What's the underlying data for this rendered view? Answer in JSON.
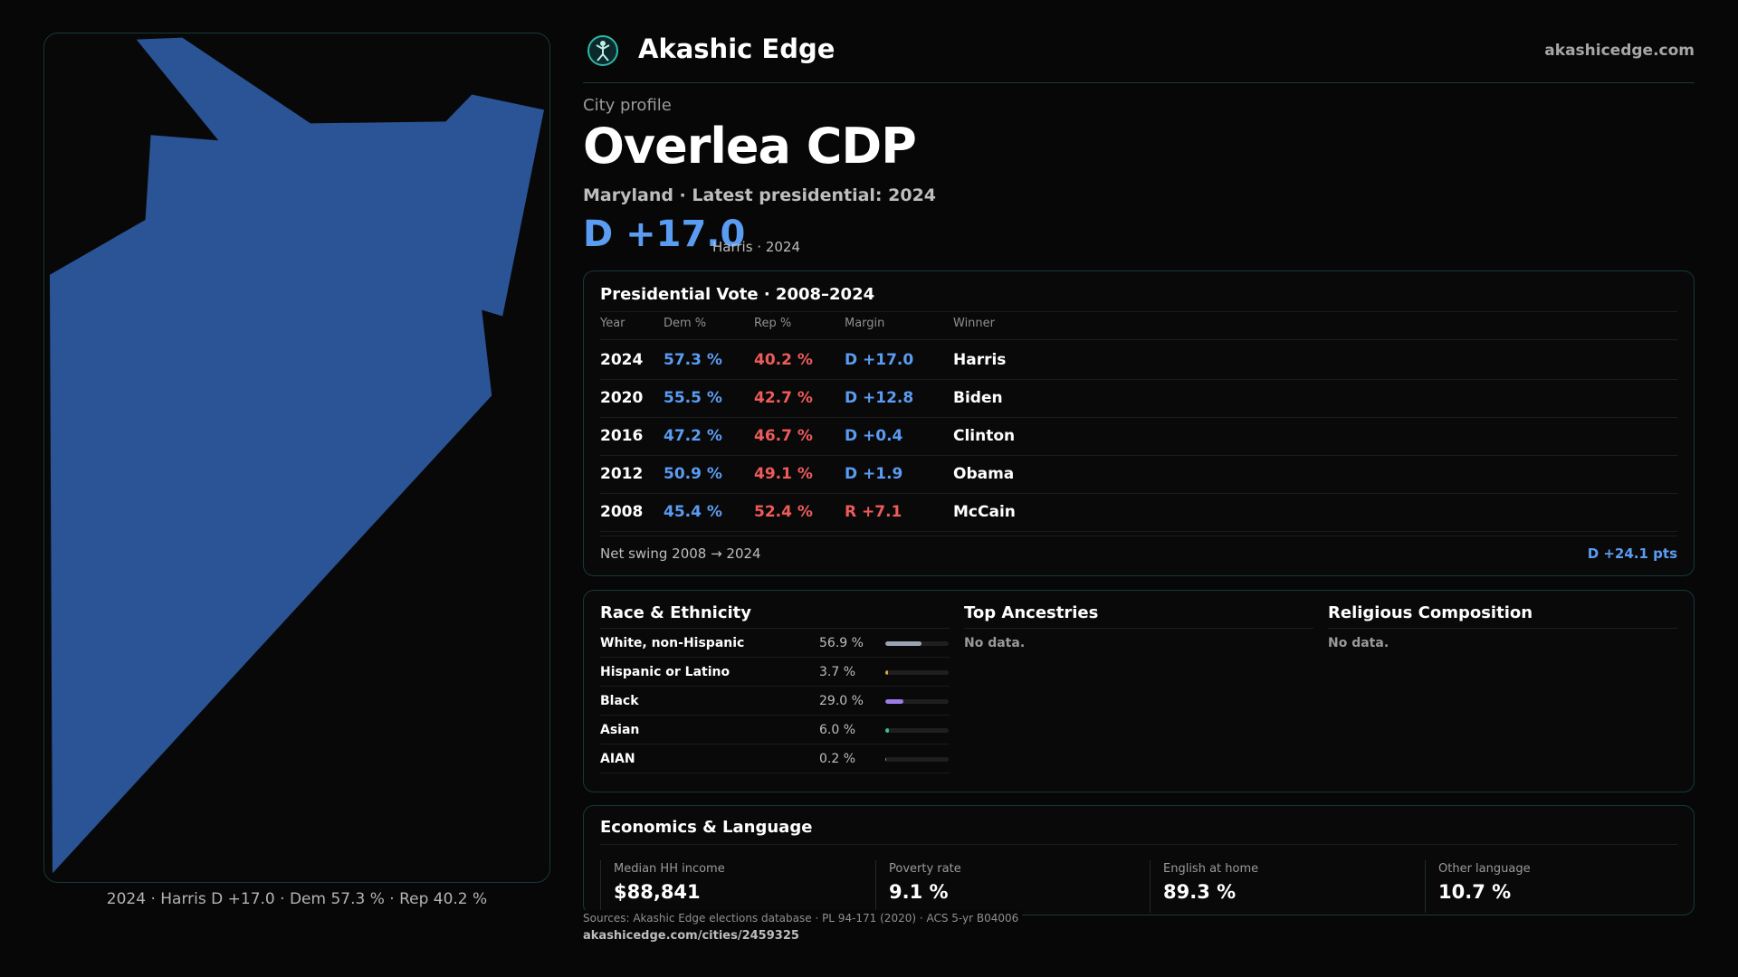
{
  "brand": {
    "name": "Akashic Edge",
    "site": "akashicedge.com"
  },
  "profile": {
    "kicker": "City profile",
    "name": "Overlea CDP",
    "subtitle": "Maryland · Latest presidential: 2024",
    "margin": "D +17.0",
    "margin_note": "Harris · 2024"
  },
  "map": {
    "caption": "2024 · Harris D +17.0 · Dem 57.3 % · Rep 40.2 %",
    "fill_color": "#2a5495"
  },
  "vote": {
    "title": "Presidential Vote · 2008–2024",
    "columns": [
      "Year",
      "Dem %",
      "Rep %",
      "Margin",
      "Winner"
    ],
    "rows": [
      {
        "year": "2024",
        "dem": "57.3 %",
        "rep": "40.2 %",
        "margin": "D +17.0",
        "party": "D",
        "winner": "Harris"
      },
      {
        "year": "2020",
        "dem": "55.5 %",
        "rep": "42.7 %",
        "margin": "D +12.8",
        "party": "D",
        "winner": "Biden"
      },
      {
        "year": "2016",
        "dem": "47.2 %",
        "rep": "46.7 %",
        "margin": "D +0.4",
        "party": "D",
        "winner": "Clinton"
      },
      {
        "year": "2012",
        "dem": "50.9 %",
        "rep": "49.1 %",
        "margin": "D +1.9",
        "party": "D",
        "winner": "Obama"
      },
      {
        "year": "2008",
        "dem": "45.4 %",
        "rep": "52.4 %",
        "margin": "R +7.1",
        "party": "R",
        "winner": "McCain"
      }
    ],
    "swing_label": "Net swing 2008 → 2024",
    "swing_value": "D +24.1 pts"
  },
  "race": {
    "title": "Race & Ethnicity",
    "rows": [
      {
        "label": "White, non-Hispanic",
        "value": "56.9 %",
        "pct": 56.9,
        "color": "#9aa4b2"
      },
      {
        "label": "Hispanic or Latino",
        "value": "3.7 %",
        "pct": 3.7,
        "color": "#e0a63a"
      },
      {
        "label": "Black",
        "value": "29.0 %",
        "pct": 29.0,
        "color": "#9b7be6"
      },
      {
        "label": "Asian",
        "value": "6.0 %",
        "pct": 6.0,
        "color": "#35c28f"
      },
      {
        "label": "AIAN",
        "value": "0.2 %",
        "pct": 0.2,
        "color": "#c0826a"
      }
    ]
  },
  "ancestries": {
    "title": "Top Ancestries",
    "empty": "No data."
  },
  "religion": {
    "title": "Religious Composition",
    "empty": "No data."
  },
  "economics": {
    "title": "Economics & Language",
    "items": [
      {
        "label": "Median HH income",
        "value": "$88,841"
      },
      {
        "label": "Poverty rate",
        "value": "9.1 %"
      },
      {
        "label": "English at home",
        "value": "89.3 %"
      },
      {
        "label": "Other language",
        "value": "10.7 %"
      }
    ]
  },
  "footer": {
    "sources": "Sources: Akashic Edge elections database · PL 94-171 (2020) · ACS 5-yr B04006",
    "url": "akashicedge.com/cities/2459325"
  },
  "colors": {
    "dem": "#5b9cf3",
    "rep": "#ee5b5b",
    "accent": "#2fb7a8"
  }
}
